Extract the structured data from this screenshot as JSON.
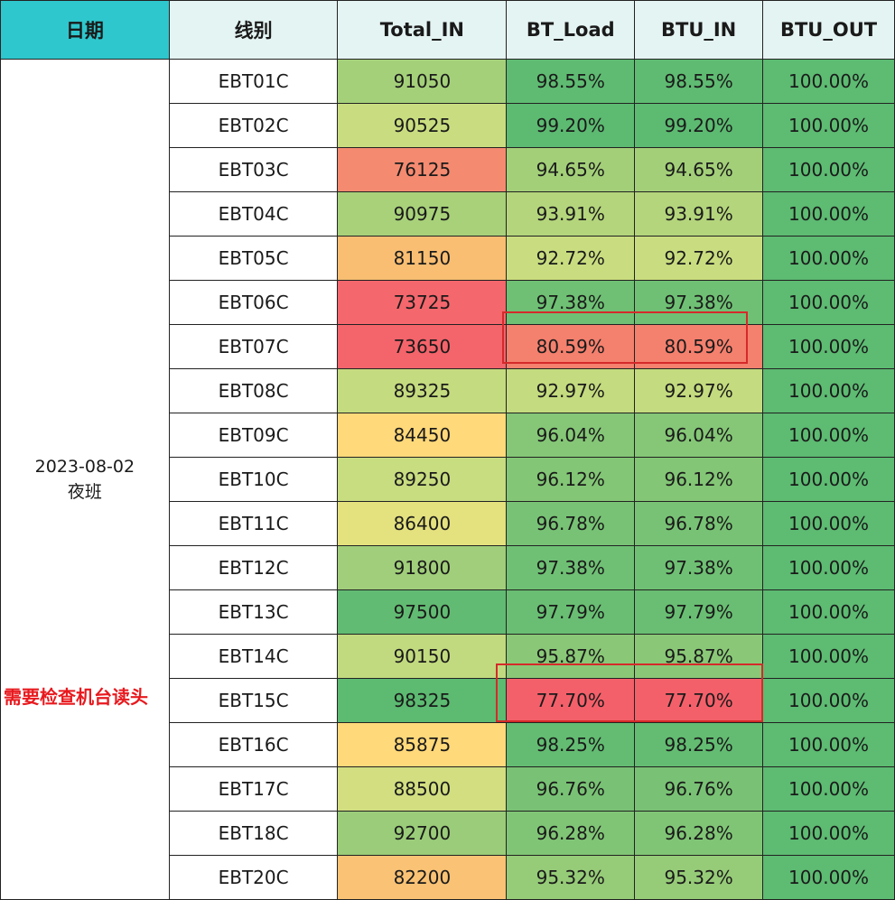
{
  "headers": [
    "日期",
    "线别",
    "Total_IN",
    "BT_Load",
    "BTU_IN",
    "BTU_OUT"
  ],
  "date_line1": "2023-08-02",
  "date_line2": "夜班",
  "annotation": "需要检查机台读头",
  "highlighted_rows": [
    "EBT07C",
    "EBT15C"
  ],
  "colors": {
    "header_date_bg": "#2ec7cd",
    "header_bg": "#e4f4f2",
    "annotation": "#e8191e",
    "highlight_box": "#d52a2a",
    "scale_high": "#5dbb72",
    "scale_mid": "#ffd97a",
    "scale_low": "#f4606a"
  },
  "rows": [
    {
      "line": "EBT01C",
      "total_in": "91050",
      "bt_load": "98.55%",
      "btu_in": "98.55%",
      "btu_out": "100.00%",
      "c_total": "#a5d07a",
      "c_load": "#5fbb72",
      "c_in": "#5fbb72"
    },
    {
      "line": "EBT02C",
      "total_in": "90525",
      "bt_load": "99.20%",
      "btu_in": "99.20%",
      "btu_out": "100.00%",
      "c_total": "#c9dd80",
      "c_load": "#5cba71",
      "c_in": "#5cba71"
    },
    {
      "line": "EBT03C",
      "total_in": "76125",
      "bt_load": "94.65%",
      "btu_in": "94.65%",
      "btu_out": "100.00%",
      "c_total": "#f48a70",
      "c_load": "#a3cf79",
      "c_in": "#a3cf79"
    },
    {
      "line": "EBT04C",
      "total_in": "90975",
      "bt_load": "93.91%",
      "btu_in": "93.91%",
      "btu_out": "100.00%",
      "c_total": "#a8d17a",
      "c_load": "#b4d57c",
      "c_in": "#b4d57c"
    },
    {
      "line": "EBT05C",
      "total_in": "81150",
      "bt_load": "92.72%",
      "btu_in": "92.72%",
      "btu_out": "100.00%",
      "c_total": "#f9be72",
      "c_load": "#c9dd80",
      "c_in": "#c9dd80"
    },
    {
      "line": "EBT06C",
      "total_in": "73725",
      "bt_load": "97.38%",
      "btu_in": "97.38%",
      "btu_out": "100.00%",
      "c_total": "#f4676c",
      "c_load": "#6fc074",
      "c_in": "#6fc074"
    },
    {
      "line": "EBT07C",
      "total_in": "73650",
      "bt_load": "80.59%",
      "btu_in": "80.59%",
      "btu_out": "100.00%",
      "c_total": "#f4646b",
      "c_load": "#f4806e",
      "c_in": "#f4806e"
    },
    {
      "line": "EBT08C",
      "total_in": "89325",
      "bt_load": "92.97%",
      "btu_in": "92.97%",
      "btu_out": "100.00%",
      "c_total": "#c5db7f",
      "c_load": "#c4db7f",
      "c_in": "#c4db7f"
    },
    {
      "line": "EBT09C",
      "total_in": "84450",
      "bt_load": "96.04%",
      "btu_in": "96.04%",
      "btu_out": "100.00%",
      "c_total": "#ffd97a",
      "c_load": "#85c777",
      "c_in": "#85c777"
    },
    {
      "line": "EBT10C",
      "total_in": "89250",
      "bt_load": "96.12%",
      "btu_in": "96.12%",
      "btu_out": "100.00%",
      "c_total": "#c8dc80",
      "c_load": "#83c676",
      "c_in": "#83c676"
    },
    {
      "line": "EBT11C",
      "total_in": "86400",
      "bt_load": "96.78%",
      "btu_in": "96.78%",
      "btu_out": "100.00%",
      "c_total": "#e4e17f",
      "c_load": "#78c275",
      "c_in": "#78c275"
    },
    {
      "line": "EBT12C",
      "total_in": "91800",
      "bt_load": "97.38%",
      "btu_in": "97.38%",
      "btu_out": "100.00%",
      "c_total": "#a0ce7a",
      "c_load": "#6fc074",
      "c_in": "#6fc074"
    },
    {
      "line": "EBT13C",
      "total_in": "97500",
      "bt_load": "97.79%",
      "btu_in": "97.79%",
      "btu_out": "100.00%",
      "c_total": "#62bb72",
      "c_load": "#69be73",
      "c_in": "#69be73"
    },
    {
      "line": "EBT14C",
      "total_in": "90150",
      "bt_load": "95.87%",
      "btu_in": "95.87%",
      "btu_out": "100.00%",
      "c_total": "#c2da7f",
      "c_load": "#8ac877",
      "c_in": "#8ac877"
    },
    {
      "line": "EBT15C",
      "total_in": "98325",
      "bt_load": "77.70%",
      "btu_in": "77.70%",
      "btu_out": "100.00%",
      "c_total": "#5cba71",
      "c_load": "#f4606a",
      "c_in": "#f4606a"
    },
    {
      "line": "EBT16C",
      "total_in": "85875",
      "bt_load": "98.25%",
      "btu_in": "98.25%",
      "btu_out": "100.00%",
      "c_total": "#ffd97a",
      "c_load": "#63bc72",
      "c_in": "#63bc72"
    },
    {
      "line": "EBT17C",
      "total_in": "88500",
      "bt_load": "96.76%",
      "btu_in": "96.76%",
      "btu_out": "100.00%",
      "c_total": "#d2de80",
      "c_load": "#79c275",
      "c_in": "#79c275"
    },
    {
      "line": "EBT18C",
      "total_in": "92700",
      "bt_load": "96.28%",
      "btu_in": "96.28%",
      "btu_out": "100.00%",
      "c_total": "#9acc79",
      "c_load": "#80c576",
      "c_in": "#80c576"
    },
    {
      "line": "EBT20C",
      "total_in": "82200",
      "bt_load": "95.32%",
      "btu_in": "95.32%",
      "btu_out": "100.00%",
      "c_total": "#f9c274",
      "c_load": "#96cb78",
      "c_in": "#96cb78"
    }
  ]
}
